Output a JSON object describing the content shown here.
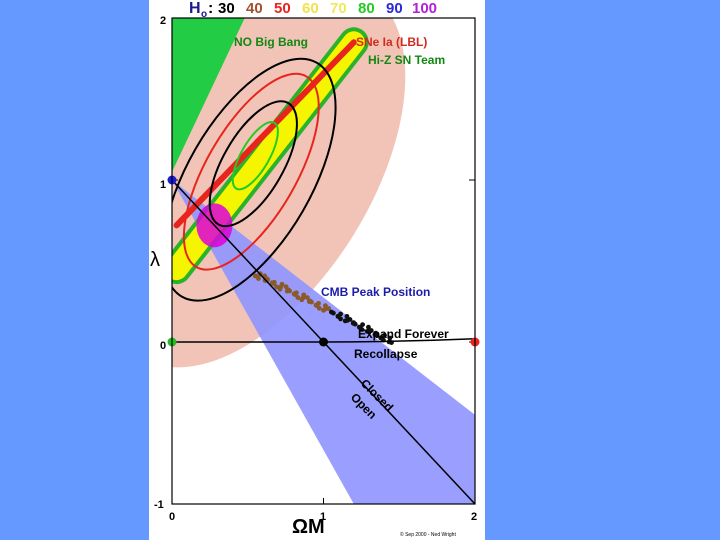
{
  "chart_data": {
    "type": "scatter",
    "title": {
      "symbol": "H",
      "subscript": "o",
      "sep": ":",
      "values": [
        {
          "text": "30",
          "color": "#000000"
        },
        {
          "text": "40",
          "color": "#a0522d"
        },
        {
          "text": "50",
          "color": "#e8251d"
        },
        {
          "text": "60",
          "color": "#f2e24a"
        },
        {
          "text": "70",
          "color": "#f0e85a"
        },
        {
          "text": "80",
          "color": "#22cc22"
        },
        {
          "text": "90",
          "color": "#2a2ad6"
        },
        {
          "text": "100",
          "color": "#b21fd8"
        }
      ]
    },
    "xlabel": "ΩM",
    "ylabel": "λ",
    "xlim": [
      0,
      2
    ],
    "ylim": [
      -1,
      2
    ],
    "x_ticks": [
      "0",
      "1",
      "2"
    ],
    "y_ticks": [
      "2",
      "1",
      "0",
      "-1"
    ],
    "annotations": {
      "no_big_bang": "NO Big Bang",
      "sne_lbl": "SNe Ia (LBL)",
      "hiz": "Hi-Z SN Team",
      "cmb": "CMB Peak Position",
      "expand": "Expand Forever",
      "recollapse": "Recollapse",
      "closed": "Closed",
      "open": "Open"
    },
    "credit": "© Sep 2000 - Ned Wright",
    "points": [
      {
        "x": 0,
        "y": 1,
        "color": "#1b1bd6"
      },
      {
        "x": 0,
        "y": 0,
        "color": "#22bb22"
      },
      {
        "x": 1,
        "y": 0,
        "color": "#000000"
      },
      {
        "x": 2,
        "y": 0,
        "color": "#e8251d"
      }
    ],
    "lines": {
      "closed_flat": [
        [
          0,
          1
        ],
        [
          2,
          -1
        ]
      ],
      "lambda_zero": [
        [
          0,
          0
        ],
        [
          2,
          0
        ]
      ]
    },
    "cmb_ellipse_center": [
      0.35,
      0.68
    ],
    "sne_contour_center": [
      0.45,
      1.15
    ],
    "colors": {
      "outer_region": "#f2c4b8",
      "cmb_band": "#8f95ff",
      "sne_yellow": "#f5f500",
      "sne_red": "#e8251d",
      "hiz_green": "#2ab32a",
      "no_big_bang": "#22cc44",
      "magenta": "#dd00dd",
      "brown_trail": "#8b5a2b"
    }
  }
}
